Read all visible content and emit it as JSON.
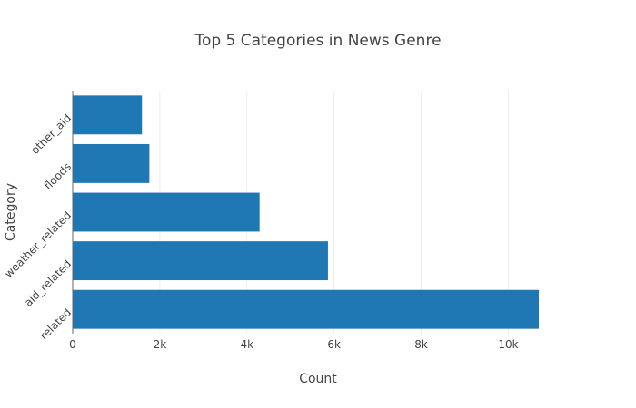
{
  "chart_data": {
    "type": "bar",
    "orientation": "horizontal",
    "title": "Top 5 Categories in News Genre",
    "xlabel": "Count",
    "ylabel": "Category",
    "categories": [
      "related",
      "aid_related",
      "weather_related",
      "floods",
      "other_aid"
    ],
    "values": [
      10700,
      5860,
      4290,
      1760,
      1590
    ],
    "xlim": [
      0,
      10700
    ],
    "x_ticks": [
      0,
      2000,
      4000,
      6000,
      8000,
      10000
    ],
    "x_tick_labels": [
      "0",
      "2k",
      "4k",
      "6k",
      "8k",
      "10k"
    ],
    "grid": true,
    "legend": "none",
    "bar_color": "#1f77b4"
  }
}
